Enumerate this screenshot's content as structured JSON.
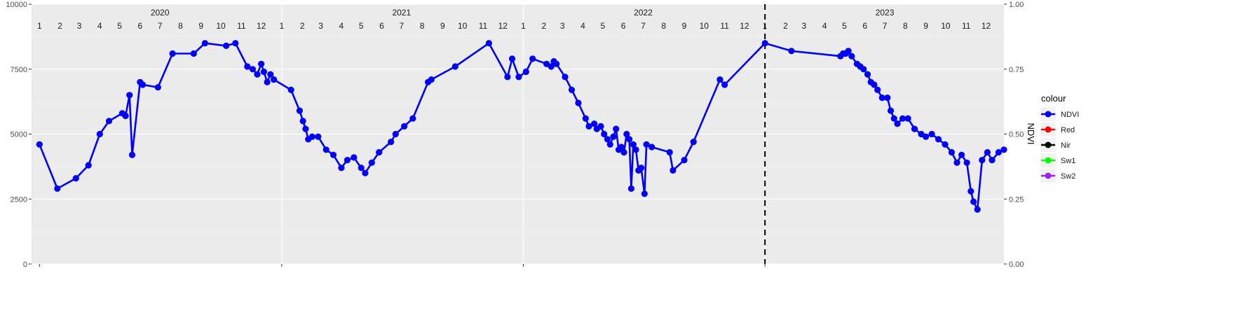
{
  "chart_data": {
    "type": "line",
    "title": "",
    "xlabel": "",
    "ylabel_left": "",
    "ylabel_right": "NDVI",
    "ylim_left": [
      0,
      10000
    ],
    "ylim_right": [
      0.0,
      1.0
    ],
    "xlim": [
      "2019-12-20",
      "2023-12-28"
    ],
    "grid": true,
    "legend": {
      "title": "colour",
      "placement": "right"
    },
    "left_ticks": [
      "0",
      "2500",
      "5000",
      "7500",
      "10000"
    ],
    "right_ticks": [
      "0.00",
      "0.25",
      "0.50",
      "0.75",
      "1.00"
    ],
    "years": [
      {
        "label": "2020",
        "date": "2020-07-01"
      },
      {
        "label": "2021",
        "date": "2021-07-01"
      },
      {
        "label": "2022",
        "date": "2022-07-01"
      },
      {
        "label": "2023",
        "date": "2023-07-01"
      }
    ],
    "year_boundaries": [
      "2021-01-01",
      "2022-01-01",
      "2023-01-01"
    ],
    "month_labels": [
      "1",
      "2",
      "3",
      "4",
      "5",
      "6",
      "7",
      "8",
      "9",
      "10",
      "11",
      "12"
    ],
    "vline": "2023-01-01",
    "series": [
      {
        "name": "NDVI",
        "color": "#0000FF",
        "axis": "right",
        "points": [
          [
            "2020-01-01",
            0.46
          ],
          [
            "2020-01-28",
            0.29
          ],
          [
            "2020-02-25",
            0.33
          ],
          [
            "2020-03-15",
            0.38
          ],
          [
            "2020-04-01",
            0.5
          ],
          [
            "2020-04-15",
            0.55
          ],
          [
            "2020-05-05",
            0.58
          ],
          [
            "2020-05-10",
            0.57
          ],
          [
            "2020-05-16",
            0.65
          ],
          [
            "2020-05-20",
            0.42
          ],
          [
            "2020-06-01",
            0.7
          ],
          [
            "2020-06-05",
            0.69
          ],
          [
            "2020-06-28",
            0.68
          ],
          [
            "2020-07-20",
            0.81
          ],
          [
            "2020-08-21",
            0.81
          ],
          [
            "2020-09-07",
            0.85
          ],
          [
            "2020-10-09",
            0.84
          ],
          [
            "2020-10-23",
            0.85
          ],
          [
            "2020-11-10",
            0.76
          ],
          [
            "2020-11-18",
            0.75
          ],
          [
            "2020-11-25",
            0.73
          ],
          [
            "2020-12-01",
            0.77
          ],
          [
            "2020-12-05",
            0.74
          ],
          [
            "2020-12-10",
            0.7
          ],
          [
            "2020-12-15",
            0.73
          ],
          [
            "2020-12-20",
            0.71
          ],
          [
            "2021-01-15",
            0.67
          ],
          [
            "2021-01-28",
            0.59
          ],
          [
            "2021-02-02",
            0.55
          ],
          [
            "2021-02-06",
            0.52
          ],
          [
            "2021-02-10",
            0.48
          ],
          [
            "2021-02-16",
            0.49
          ],
          [
            "2021-02-25",
            0.49
          ],
          [
            "2021-03-09",
            0.44
          ],
          [
            "2021-03-20",
            0.42
          ],
          [
            "2021-04-01",
            0.37
          ],
          [
            "2021-04-10",
            0.4
          ],
          [
            "2021-04-20",
            0.41
          ],
          [
            "2021-05-01",
            0.37
          ],
          [
            "2021-05-07",
            0.35
          ],
          [
            "2021-05-17",
            0.39
          ],
          [
            "2021-05-28",
            0.43
          ],
          [
            "2021-06-15",
            0.47
          ],
          [
            "2021-06-22",
            0.5
          ],
          [
            "2021-07-05",
            0.53
          ],
          [
            "2021-07-18",
            0.56
          ],
          [
            "2021-08-10",
            0.7
          ],
          [
            "2021-08-15",
            0.71
          ],
          [
            "2021-09-20",
            0.76
          ],
          [
            "2021-11-10",
            0.85
          ],
          [
            "2021-12-08",
            0.72
          ],
          [
            "2021-12-15",
            0.79
          ],
          [
            "2021-12-25",
            0.72
          ],
          [
            "2022-01-05",
            0.74
          ],
          [
            "2022-01-15",
            0.79
          ],
          [
            "2022-02-05",
            0.77
          ],
          [
            "2022-02-12",
            0.76
          ],
          [
            "2022-02-16",
            0.78
          ],
          [
            "2022-02-20",
            0.77
          ],
          [
            "2022-03-05",
            0.72
          ],
          [
            "2022-03-15",
            0.67
          ],
          [
            "2022-03-25",
            0.62
          ],
          [
            "2022-04-05",
            0.56
          ],
          [
            "2022-04-10",
            0.53
          ],
          [
            "2022-04-18",
            0.54
          ],
          [
            "2022-04-22",
            0.52
          ],
          [
            "2022-04-28",
            0.53
          ],
          [
            "2022-05-03",
            0.5
          ],
          [
            "2022-05-08",
            0.48
          ],
          [
            "2022-05-12",
            0.46
          ],
          [
            "2022-05-17",
            0.49
          ],
          [
            "2022-05-21",
            0.52
          ],
          [
            "2022-05-25",
            0.44
          ],
          [
            "2022-05-29",
            0.45
          ],
          [
            "2022-06-02",
            0.43
          ],
          [
            "2022-06-06",
            0.5
          ],
          [
            "2022-06-10",
            0.48
          ],
          [
            "2022-06-13",
            0.29
          ],
          [
            "2022-06-16",
            0.46
          ],
          [
            "2022-06-20",
            0.44
          ],
          [
            "2022-06-24",
            0.36
          ],
          [
            "2022-06-28",
            0.37
          ],
          [
            "2022-07-03",
            0.27
          ],
          [
            "2022-07-06",
            0.46
          ],
          [
            "2022-07-14",
            0.45
          ],
          [
            "2022-08-10",
            0.43
          ],
          [
            "2022-08-15",
            0.36
          ],
          [
            "2022-09-01",
            0.4
          ],
          [
            "2022-09-15",
            0.47
          ],
          [
            "2022-10-25",
            0.71
          ],
          [
            "2022-11-01",
            0.69
          ],
          [
            "2023-01-01",
            0.85
          ],
          [
            "2023-02-10",
            0.82
          ],
          [
            "2023-04-25",
            0.8
          ],
          [
            "2023-04-29",
            0.81
          ],
          [
            "2023-05-03",
            0.81
          ],
          [
            "2023-05-07",
            0.82
          ],
          [
            "2023-05-12",
            0.8
          ],
          [
            "2023-05-20",
            0.77
          ],
          [
            "2023-05-25",
            0.76
          ],
          [
            "2023-05-30",
            0.75
          ],
          [
            "2023-06-05",
            0.73
          ],
          [
            "2023-06-10",
            0.7
          ],
          [
            "2023-06-15",
            0.69
          ],
          [
            "2023-06-20",
            0.67
          ],
          [
            "2023-06-27",
            0.64
          ],
          [
            "2023-07-05",
            0.64
          ],
          [
            "2023-07-10",
            0.59
          ],
          [
            "2023-07-15",
            0.56
          ],
          [
            "2023-07-20",
            0.54
          ],
          [
            "2023-07-28",
            0.56
          ],
          [
            "2023-08-05",
            0.56
          ],
          [
            "2023-08-15",
            0.52
          ],
          [
            "2023-08-25",
            0.5
          ],
          [
            "2023-09-01",
            0.49
          ],
          [
            "2023-09-10",
            0.5
          ],
          [
            "2023-09-20",
            0.48
          ],
          [
            "2023-09-30",
            0.46
          ],
          [
            "2023-10-10",
            0.43
          ],
          [
            "2023-10-18",
            0.39
          ],
          [
            "2023-10-25",
            0.42
          ],
          [
            "2023-11-02",
            0.39
          ],
          [
            "2023-11-08",
            0.28
          ],
          [
            "2023-11-12",
            0.24
          ],
          [
            "2023-11-18",
            0.21
          ],
          [
            "2023-11-25",
            0.4
          ],
          [
            "2023-12-03",
            0.43
          ],
          [
            "2023-12-10",
            0.4
          ],
          [
            "2023-12-20",
            0.43
          ],
          [
            "2023-12-28",
            0.44
          ]
        ]
      },
      {
        "name": "Red",
        "color": "#FF0000",
        "axis": "left",
        "points": []
      },
      {
        "name": "Nir",
        "color": "#000000",
        "axis": "left",
        "points": []
      },
      {
        "name": "Sw1",
        "color": "#00FF00",
        "axis": "left",
        "points": []
      },
      {
        "name": "Sw2",
        "color": "#A020F0",
        "axis": "left",
        "points": []
      }
    ]
  }
}
